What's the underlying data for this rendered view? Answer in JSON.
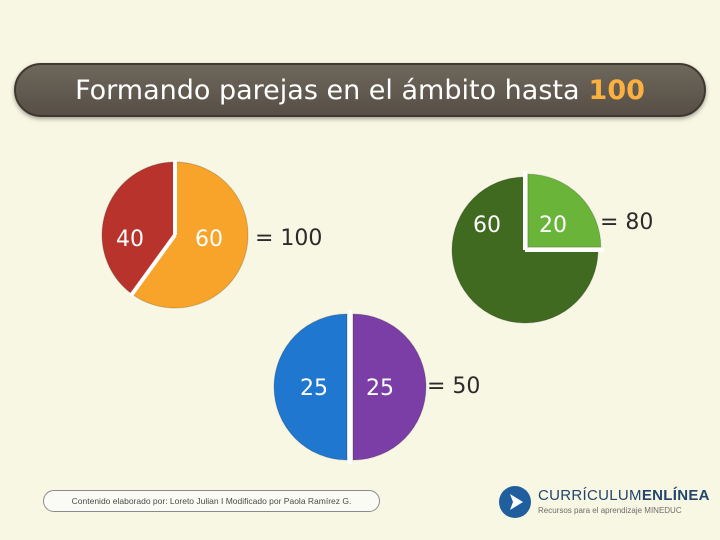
{
  "title": {
    "text": "Formando parejas en el ámbito hasta",
    "accent": "100"
  },
  "colors": {
    "accent": "#fbb040",
    "red": "#b8332b",
    "orange": "#f8a42a",
    "dark_green": "#3f6a20",
    "light_green": "#6ab43a",
    "blue": "#1f77cf",
    "purple": "#7b3ea6"
  },
  "pies": [
    {
      "id": "pie-100",
      "total": 100,
      "slices": [
        {
          "label": "40",
          "value": 40,
          "color": "#b8332b",
          "text_color": "#ffffff"
        },
        {
          "label": "60",
          "value": 60,
          "color": "#f8a42a",
          "text_color": "#ffffff"
        }
      ],
      "equation": "= 100"
    },
    {
      "id": "pie-80",
      "total": 80,
      "slices": [
        {
          "label": "60",
          "value": 60,
          "color": "#3f6a20",
          "text_color": "#ffffff"
        },
        {
          "label": "20",
          "value": 20,
          "color": "#6ab43a",
          "text_color": "#ffffff"
        }
      ],
      "equation": "= 80"
    },
    {
      "id": "pie-50",
      "total": 50,
      "slices": [
        {
          "label": "25",
          "value": 25,
          "color": "#1f77cf",
          "text_color": "#ffffff"
        },
        {
          "label": "25",
          "value": 25,
          "color": "#7b3ea6",
          "text_color": "#ffffff"
        }
      ],
      "equation": "= 50"
    }
  ],
  "footer": {
    "credit": "Contenido elaborado por: Loreto Julian  I  Modificado por Paola Ramírez G.",
    "logo_name_regular": "CURRÍCULUM",
    "logo_name_bold": "ENLÍNEA",
    "logo_tagline": "Recursos para el aprendizaje MINEDUC"
  }
}
